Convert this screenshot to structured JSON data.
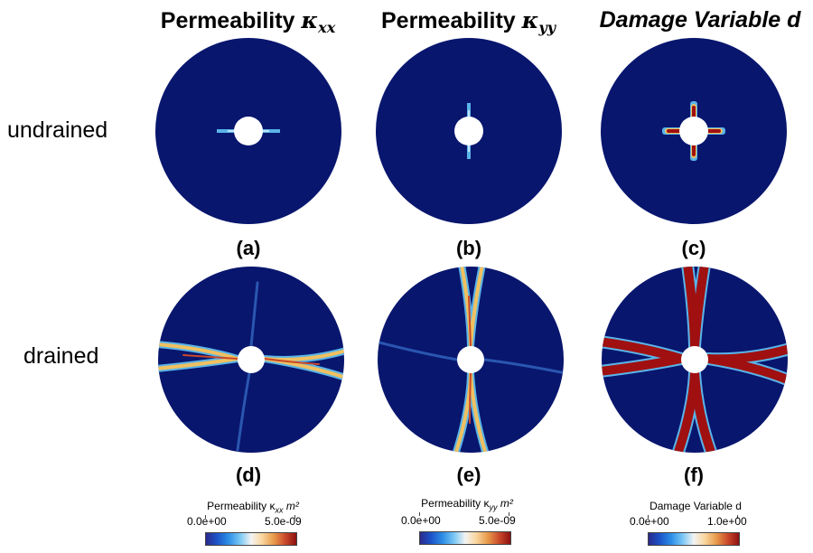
{
  "columns": [
    {
      "title_prefix": "Permeability",
      "symbol": "κ",
      "subscript": "xx"
    },
    {
      "title_prefix": "Permeability",
      "symbol": "κ",
      "subscript": "yy"
    },
    {
      "title_prefix": "Damage Variable d",
      "symbol": "",
      "subscript": ""
    }
  ],
  "rows": [
    "undrained",
    "drained"
  ],
  "panel_labels": [
    "(a)",
    "(b)",
    "(c)",
    "(d)",
    "(e)",
    "(f)"
  ],
  "colorbars": [
    {
      "title": "Permeability κ",
      "title_sub": "xx",
      "title_unit": "m²",
      "min": "0.0e+00",
      "max": "5.0e-09"
    },
    {
      "title": "Permeability κ",
      "title_sub": "yy",
      "title_unit": "m²",
      "min": "0.0e+00",
      "max": "5.0e-09"
    },
    {
      "title": "Damage Variable d",
      "title_sub": "",
      "title_unit": "",
      "min": "0.0e+00",
      "max": "1.0e+00"
    }
  ],
  "colors": {
    "background_field": "#08166e",
    "hole": "#ffffff",
    "high": "#a01010",
    "mid": "#f0c060",
    "low_edge": "#5ab4e8"
  }
}
